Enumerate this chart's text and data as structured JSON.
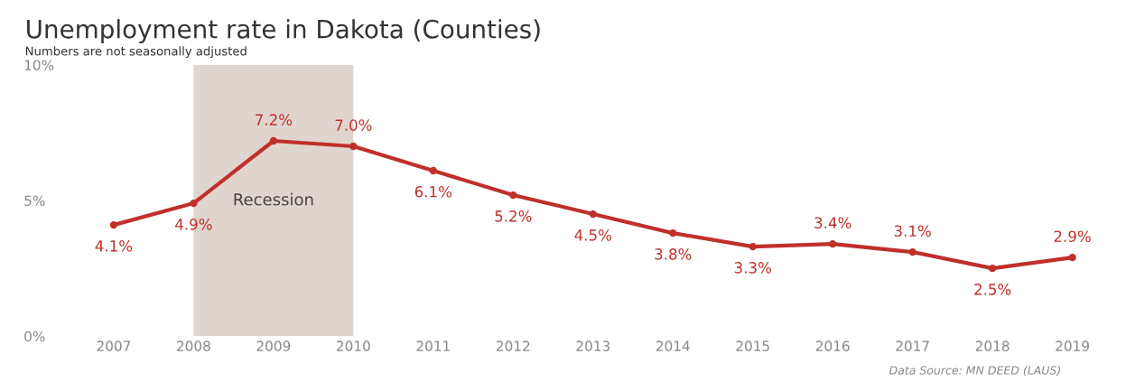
{
  "chart_data": {
    "type": "line",
    "title": "Unemployment rate in Dakota (Counties)",
    "subtitle": "Numbers are not seasonally adjusted",
    "categories": [
      "2007",
      "2008",
      "2009",
      "2010",
      "2011",
      "2012",
      "2013",
      "2014",
      "2015",
      "2016",
      "2017",
      "2018",
      "2019"
    ],
    "series": [
      {
        "color": "#c0302b",
        "values": [
          4.1,
          4.9,
          7.2,
          7.0,
          6.1,
          5.2,
          4.5,
          3.8,
          3.3,
          3.4,
          3.1,
          2.5,
          2.9
        ],
        "value_labels": [
          "4.1%",
          "4.9%",
          "7.2%",
          "7.0%",
          "6.1%",
          "5.2%",
          "4.5%",
          "3.8%",
          "3.3%",
          "3.4%",
          "3.1%",
          "2.5%",
          "2.9%"
        ]
      }
    ],
    "ylim": [
      0,
      10
    ],
    "yticks": [
      {
        "value": 0,
        "label": "0%"
      },
      {
        "value": 5,
        "label": "5%"
      },
      {
        "value": 10,
        "label": "10%"
      }
    ],
    "bands": [
      {
        "axis": "x",
        "from": "2008",
        "to": "2010",
        "label": "Recession",
        "color": "#e0d4ce"
      }
    ],
    "marker": "circle",
    "line_style": "solid",
    "grid": false,
    "annotations": [
      "Data Source: MN DEED (LAUS)"
    ]
  }
}
